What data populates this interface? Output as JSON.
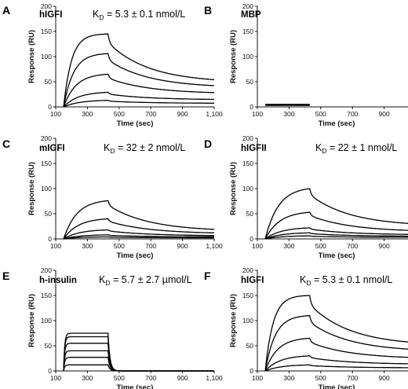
{
  "chart_data": [
    {
      "type": "line",
      "panel": "A",
      "title": "hIGFI",
      "kd": {
        "prefix": "K",
        "sub": "D",
        "value": " = 5.3 ± 0.1 nmol/L"
      },
      "xlabel": "Time (sec)",
      "ylabel": "Response (RU)",
      "xlim": [
        100,
        1100
      ],
      "ylim": [
        0,
        200
      ],
      "xticks": [
        "100",
        "300",
        "500",
        "700",
        "900",
        "1,100"
      ],
      "yticks": [
        "0",
        "50",
        "100",
        "150",
        "200"
      ],
      "injection": {
        "start": 150,
        "end": 430
      },
      "series": [
        {
          "plateau": 145,
          "end": 48,
          "kon": 0.02
        },
        {
          "plateau": 106,
          "end": 38,
          "kon": 0.016
        },
        {
          "plateau": 65,
          "end": 26,
          "kon": 0.013
        },
        {
          "plateau": 29,
          "end": 14,
          "kon": 0.011
        },
        {
          "plateau": 13,
          "end": 7,
          "kon": 0.01
        }
      ]
    },
    {
      "type": "line",
      "panel": "B",
      "title": "MBP",
      "xlabel": "Time (sec)",
      "ylabel": "Response (RU)",
      "xlim": [
        100,
        1100
      ],
      "ylim": [
        0,
        200
      ],
      "xticks": [
        "100",
        "300",
        "500",
        "700",
        "900",
        "1,100"
      ],
      "yticks": [
        "0",
        "50",
        "100",
        "150",
        "200"
      ],
      "injection": {
        "start": 150,
        "end": 430
      },
      "series": [
        {
          "plateau": 5,
          "end": 0,
          "kon": 0.5,
          "fast": true
        },
        {
          "plateau": 4,
          "end": 0,
          "kon": 0.5,
          "fast": true
        },
        {
          "plateau": 3,
          "end": 0,
          "kon": 0.5,
          "fast": true
        }
      ]
    },
    {
      "type": "line",
      "panel": "C",
      "title": "mIGFI",
      "kd": {
        "prefix": "K",
        "sub": "D",
        "value": " = 32 ± 2 nmol/L"
      },
      "xlabel": "Time (sec)",
      "ylabel": "Response (RU)",
      "xlim": [
        100,
        1100
      ],
      "ylim": [
        0,
        200
      ],
      "xticks": [
        "100",
        "300",
        "500",
        "700",
        "900",
        "1,100"
      ],
      "yticks": [
        "0",
        "50",
        "100",
        "150",
        "200"
      ],
      "injection": {
        "start": 150,
        "end": 430
      },
      "series": [
        {
          "plateau": 76,
          "end": 15,
          "kon": 0.012
        },
        {
          "plateau": 40,
          "end": 10,
          "kon": 0.011
        },
        {
          "plateau": 18,
          "end": 6,
          "kon": 0.01
        },
        {
          "plateau": 8,
          "end": 4,
          "kon": 0.01
        },
        {
          "plateau": 4,
          "end": 2,
          "kon": 0.01
        }
      ]
    },
    {
      "type": "line",
      "panel": "D",
      "title": "hIGFII",
      "kd": {
        "prefix": "K",
        "sub": "D",
        "value": " = 22 ± 1 nmol/L"
      },
      "xlabel": "Time (sec)",
      "ylabel": "Response (RU)",
      "xlim": [
        100,
        1100
      ],
      "ylim": [
        0,
        200
      ],
      "xticks": [
        "100",
        "300",
        "500",
        "700",
        "900",
        "1,100"
      ],
      "yticks": [
        "0",
        "50",
        "100",
        "150",
        "200"
      ],
      "injection": {
        "start": 150,
        "end": 430
      },
      "series": [
        {
          "plateau": 100,
          "end": 25,
          "kon": 0.012
        },
        {
          "plateau": 53,
          "end": 14,
          "kon": 0.011
        },
        {
          "plateau": 22,
          "end": 8,
          "kon": 0.01
        },
        {
          "plateau": 12,
          "end": 5,
          "kon": 0.01
        },
        {
          "plateau": 6,
          "end": 3,
          "kon": 0.01
        }
      ]
    },
    {
      "type": "line",
      "panel": "E",
      "title": "h-insulin",
      "kd": {
        "prefix": "K",
        "sub": "D",
        "value": " = 5.7 ± 2.7 µmol/L"
      },
      "xlabel": "Time (sec)",
      "ylabel": "Response (RU)",
      "xlim": [
        100,
        1100
      ],
      "ylim": [
        0,
        200
      ],
      "xticks": [
        "100",
        "300",
        "500",
        "700",
        "900",
        "1,100"
      ],
      "yticks": [
        "0",
        "50",
        "100",
        "150",
        "200"
      ],
      "injection": {
        "start": 150,
        "end": 430
      },
      "series": [
        {
          "plateau": 75,
          "end": 0,
          "kon": 0.15,
          "fast": true
        },
        {
          "plateau": 68,
          "end": 0,
          "kon": 0.15,
          "fast": true
        },
        {
          "plateau": 55,
          "end": 0,
          "kon": 0.15,
          "fast": true
        },
        {
          "plateau": 40,
          "end": 0,
          "kon": 0.15,
          "fast": true
        },
        {
          "plateau": 27,
          "end": 0,
          "kon": 0.15,
          "fast": true
        },
        {
          "plateau": 12,
          "end": 0,
          "kon": 0.15,
          "fast": true
        }
      ]
    },
    {
      "type": "line",
      "panel": "F",
      "title": "hIGFI",
      "kd": {
        "prefix": "K",
        "sub": "D",
        "value": " = 5.3 ± 0.1 nmol/L"
      },
      "xlabel": "Time (sec)",
      "ylabel": "Response (RU)",
      "xlim": [
        100,
        1100
      ],
      "ylim": [
        0,
        200
      ],
      "xticks": [
        "100",
        "300",
        "500",
        "700",
        "900",
        "1,100"
      ],
      "yticks": [
        "0",
        "50",
        "100",
        "150",
        "200"
      ],
      "injection": {
        "start": 150,
        "end": 430
      },
      "series": [
        {
          "plateau": 150,
          "end": 50,
          "kon": 0.02
        },
        {
          "plateau": 110,
          "end": 38,
          "kon": 0.016
        },
        {
          "plateau": 65,
          "end": 24,
          "kon": 0.013
        },
        {
          "plateau": 30,
          "end": 13,
          "kon": 0.011
        },
        {
          "plateau": 12,
          "end": 6,
          "kon": 0.01
        }
      ]
    }
  ]
}
